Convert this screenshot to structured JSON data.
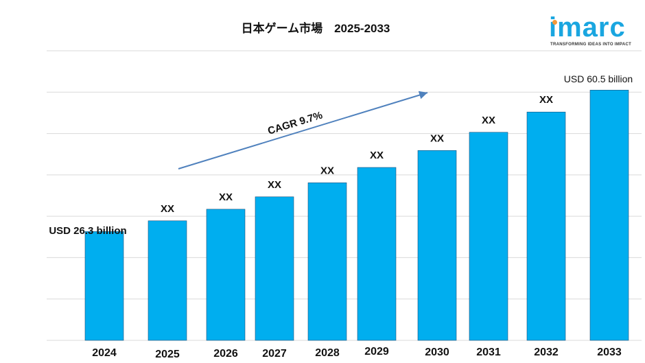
{
  "title": "日本ゲーム市場　2025-2033",
  "logo": {
    "wordmark": "imarc",
    "tagline": "TRANSFORMING IDEAS INTO IMPACT",
    "colors": {
      "primary": "#1aa6e0",
      "dot": "#f2993a"
    }
  },
  "chart_data": {
    "type": "bar",
    "categories": [
      "2024",
      "2025",
      "2026",
      "2027",
      "2028",
      "2029",
      "2030",
      "2031",
      "2032",
      "2033"
    ],
    "values": [
      26.3,
      28.9,
      31.7,
      34.7,
      38.1,
      41.8,
      45.9,
      50.3,
      55.2,
      60.5
    ],
    "data_labels": [
      "USD 26.3 billion",
      "XX",
      "XX",
      "XX",
      "XX",
      "XX",
      "XX",
      "XX",
      "XX",
      "USD  60.5 billion"
    ],
    "ylim": [
      0,
      70
    ],
    "grid": true,
    "bar_color": "#00aeef",
    "annotation": {
      "text": "CAGR 9.7%",
      "color": "#4f81bd"
    }
  }
}
